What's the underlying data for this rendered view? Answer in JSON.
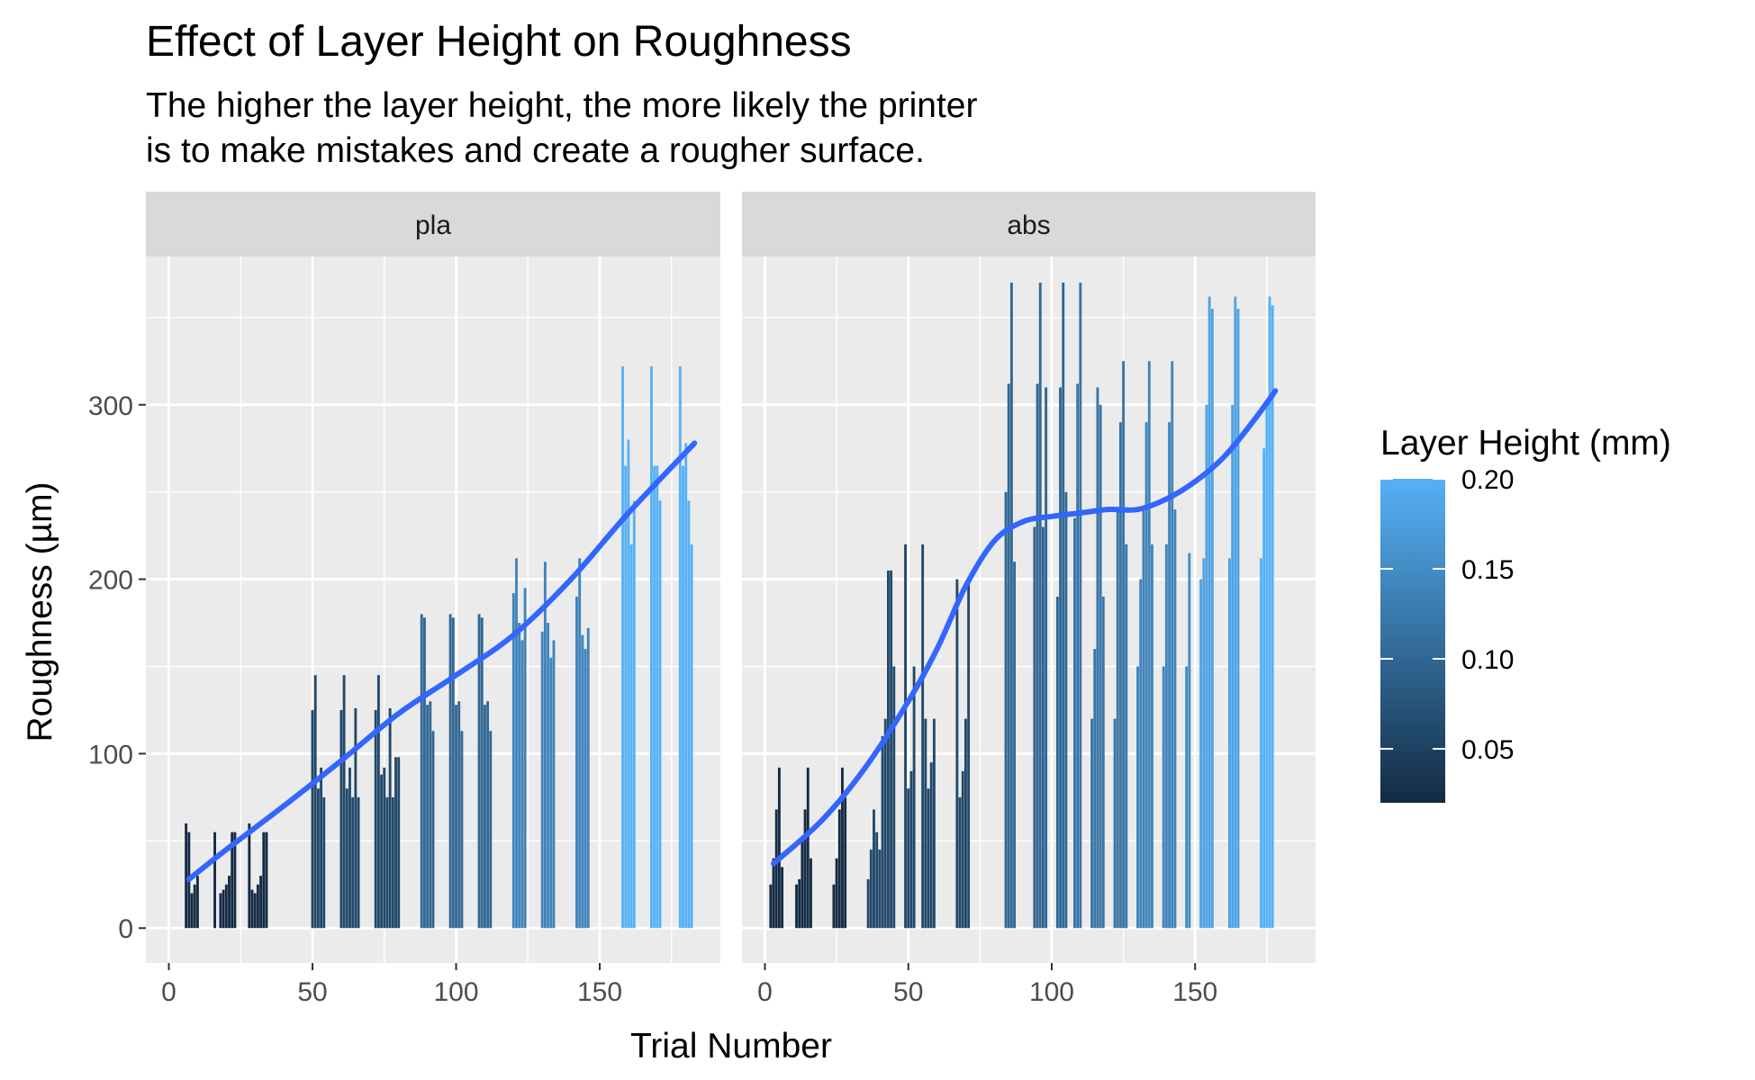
{
  "chart_data": {
    "type": "bar",
    "title": "Effect of Layer Height on Roughness",
    "subtitle_lines": [
      "The higher the layer height, the more likely the printer",
      "is to make mistakes and create a rougher surface."
    ],
    "xlabel": "Trial Number",
    "ylabel": "Roughness (µm)",
    "xlim": [
      -8,
      192
    ],
    "xticks": [
      0,
      50,
      100,
      150
    ],
    "ylim": [
      -20,
      385
    ],
    "yticks": [
      0,
      100,
      200,
      300
    ],
    "grid": true,
    "legend": {
      "title": "Layer Height (mm)",
      "position": "right",
      "range": [
        0.02,
        0.2
      ],
      "ticks": [
        0.05,
        0.1,
        0.15,
        0.2
      ],
      "color_low": "#132B43",
      "color_high": "#56B1F7"
    },
    "facets": [
      {
        "label": "pla",
        "bars": [
          {
            "x": 6,
            "y": 60,
            "h": 0.02
          },
          {
            "x": 7,
            "y": 55,
            "h": 0.02
          },
          {
            "x": 8,
            "y": 20,
            "h": 0.02
          },
          {
            "x": 9,
            "y": 25,
            "h": 0.02
          },
          {
            "x": 10,
            "y": 30,
            "h": 0.02
          },
          {
            "x": 16,
            "y": 55,
            "h": 0.02
          },
          {
            "x": 18,
            "y": 20,
            "h": 0.02
          },
          {
            "x": 19,
            "y": 22,
            "h": 0.02
          },
          {
            "x": 20,
            "y": 25,
            "h": 0.02
          },
          {
            "x": 21,
            "y": 30,
            "h": 0.02
          },
          {
            "x": 22,
            "y": 55,
            "h": 0.02
          },
          {
            "x": 23,
            "y": 55,
            "h": 0.02
          },
          {
            "x": 28,
            "y": 60,
            "h": 0.02
          },
          {
            "x": 29,
            "y": 22,
            "h": 0.02
          },
          {
            "x": 30,
            "y": 20,
            "h": 0.02
          },
          {
            "x": 31,
            "y": 25,
            "h": 0.02
          },
          {
            "x": 32,
            "y": 30,
            "h": 0.02
          },
          {
            "x": 33,
            "y": 55,
            "h": 0.02
          },
          {
            "x": 34,
            "y": 55,
            "h": 0.02
          },
          {
            "x": 50,
            "y": 125,
            "h": 0.06
          },
          {
            "x": 51,
            "y": 145,
            "h": 0.06
          },
          {
            "x": 52,
            "y": 80,
            "h": 0.06
          },
          {
            "x": 53,
            "y": 92,
            "h": 0.06
          },
          {
            "x": 54,
            "y": 75,
            "h": 0.06
          },
          {
            "x": 60,
            "y": 125,
            "h": 0.06
          },
          {
            "x": 61,
            "y": 145,
            "h": 0.06
          },
          {
            "x": 62,
            "y": 80,
            "h": 0.06
          },
          {
            "x": 63,
            "y": 92,
            "h": 0.06
          },
          {
            "x": 64,
            "y": 75,
            "h": 0.06
          },
          {
            "x": 65,
            "y": 126,
            "h": 0.06
          },
          {
            "x": 66,
            "y": 75,
            "h": 0.06
          },
          {
            "x": 72,
            "y": 125,
            "h": 0.06
          },
          {
            "x": 73,
            "y": 145,
            "h": 0.06
          },
          {
            "x": 74,
            "y": 88,
            "h": 0.06
          },
          {
            "x": 75,
            "y": 92,
            "h": 0.06
          },
          {
            "x": 76,
            "y": 75,
            "h": 0.06
          },
          {
            "x": 77,
            "y": 126,
            "h": 0.06
          },
          {
            "x": 78,
            "y": 75,
            "h": 0.06
          },
          {
            "x": 79,
            "y": 98,
            "h": 0.06
          },
          {
            "x": 80,
            "y": 98,
            "h": 0.06
          },
          {
            "x": 88,
            "y": 180,
            "h": 0.1
          },
          {
            "x": 89,
            "y": 178,
            "h": 0.1
          },
          {
            "x": 90,
            "y": 128,
            "h": 0.1
          },
          {
            "x": 91,
            "y": 130,
            "h": 0.1
          },
          {
            "x": 92,
            "y": 113,
            "h": 0.1
          },
          {
            "x": 98,
            "y": 180,
            "h": 0.1
          },
          {
            "x": 99,
            "y": 178,
            "h": 0.1
          },
          {
            "x": 100,
            "y": 128,
            "h": 0.1
          },
          {
            "x": 101,
            "y": 130,
            "h": 0.1
          },
          {
            "x": 102,
            "y": 113,
            "h": 0.1
          },
          {
            "x": 108,
            "y": 180,
            "h": 0.1
          },
          {
            "x": 109,
            "y": 178,
            "h": 0.1
          },
          {
            "x": 110,
            "y": 128,
            "h": 0.1
          },
          {
            "x": 111,
            "y": 130,
            "h": 0.1
          },
          {
            "x": 112,
            "y": 113,
            "h": 0.1
          },
          {
            "x": 120,
            "y": 192,
            "h": 0.14
          },
          {
            "x": 121,
            "y": 212,
            "h": 0.14
          },
          {
            "x": 122,
            "y": 175,
            "h": 0.14
          },
          {
            "x": 123,
            "y": 165,
            "h": 0.14
          },
          {
            "x": 124,
            "y": 195,
            "h": 0.14
          },
          {
            "x": 130,
            "y": 170,
            "h": 0.14
          },
          {
            "x": 131,
            "y": 210,
            "h": 0.14
          },
          {
            "x": 132,
            "y": 175,
            "h": 0.14
          },
          {
            "x": 133,
            "y": 155,
            "h": 0.14
          },
          {
            "x": 134,
            "y": 165,
            "h": 0.14
          },
          {
            "x": 142,
            "y": 190,
            "h": 0.14
          },
          {
            "x": 143,
            "y": 212,
            "h": 0.14
          },
          {
            "x": 144,
            "y": 168,
            "h": 0.14
          },
          {
            "x": 145,
            "y": 160,
            "h": 0.14
          },
          {
            "x": 146,
            "y": 172,
            "h": 0.14
          },
          {
            "x": 158,
            "y": 322,
            "h": 0.2
          },
          {
            "x": 159,
            "y": 265,
            "h": 0.2
          },
          {
            "x": 160,
            "y": 280,
            "h": 0.2
          },
          {
            "x": 161,
            "y": 220,
            "h": 0.2
          },
          {
            "x": 162,
            "y": 245,
            "h": 0.2
          },
          {
            "x": 168,
            "y": 322,
            "h": 0.2
          },
          {
            "x": 169,
            "y": 265,
            "h": 0.2
          },
          {
            "x": 170,
            "y": 265,
            "h": 0.2
          },
          {
            "x": 171,
            "y": 245,
            "h": 0.2
          },
          {
            "x": 178,
            "y": 322,
            "h": 0.2
          },
          {
            "x": 179,
            "y": 265,
            "h": 0.2
          },
          {
            "x": 180,
            "y": 278,
            "h": 0.2
          },
          {
            "x": 181,
            "y": 245,
            "h": 0.2
          },
          {
            "x": 182,
            "y": 220,
            "h": 0.2
          }
        ],
        "trend": [
          [
            7,
            28
          ],
          [
            20,
            45
          ],
          [
            40,
            70
          ],
          [
            60,
            96
          ],
          [
            80,
            123
          ],
          [
            100,
            145
          ],
          [
            120,
            168
          ],
          [
            140,
            200
          ],
          [
            160,
            238
          ],
          [
            183,
            278
          ]
        ]
      },
      {
        "label": "abs",
        "bars": [
          {
            "x": 2,
            "y": 25,
            "h": 0.02
          },
          {
            "x": 3,
            "y": 40,
            "h": 0.02
          },
          {
            "x": 4,
            "y": 68,
            "h": 0.02
          },
          {
            "x": 5,
            "y": 92,
            "h": 0.02
          },
          {
            "x": 6,
            "y": 35,
            "h": 0.02
          },
          {
            "x": 11,
            "y": 25,
            "h": 0.02
          },
          {
            "x": 12,
            "y": 28,
            "h": 0.02
          },
          {
            "x": 13,
            "y": 50,
            "h": 0.02
          },
          {
            "x": 14,
            "y": 68,
            "h": 0.02
          },
          {
            "x": 15,
            "y": 92,
            "h": 0.02
          },
          {
            "x": 16,
            "y": 40,
            "h": 0.02
          },
          {
            "x": 24,
            "y": 25,
            "h": 0.02
          },
          {
            "x": 25,
            "y": 40,
            "h": 0.02
          },
          {
            "x": 26,
            "y": 68,
            "h": 0.02
          },
          {
            "x": 27,
            "y": 92,
            "h": 0.02
          },
          {
            "x": 28,
            "y": 75,
            "h": 0.02
          },
          {
            "x": 36,
            "y": 28,
            "h": 0.06
          },
          {
            "x": 37,
            "y": 45,
            "h": 0.06
          },
          {
            "x": 38,
            "y": 68,
            "h": 0.06
          },
          {
            "x": 39,
            "y": 55,
            "h": 0.06
          },
          {
            "x": 40,
            "y": 45,
            "h": 0.06
          },
          {
            "x": 41,
            "y": 110,
            "h": 0.06
          },
          {
            "x": 42,
            "y": 120,
            "h": 0.06
          },
          {
            "x": 43,
            "y": 205,
            "h": 0.06
          },
          {
            "x": 44,
            "y": 205,
            "h": 0.06
          },
          {
            "x": 45,
            "y": 150,
            "h": 0.06
          },
          {
            "x": 49,
            "y": 220,
            "h": 0.06
          },
          {
            "x": 50,
            "y": 80,
            "h": 0.06
          },
          {
            "x": 51,
            "y": 90,
            "h": 0.06
          },
          {
            "x": 52,
            "y": 150,
            "h": 0.06
          },
          {
            "x": 55,
            "y": 220,
            "h": 0.06
          },
          {
            "x": 56,
            "y": 120,
            "h": 0.06
          },
          {
            "x": 57,
            "y": 80,
            "h": 0.06
          },
          {
            "x": 58,
            "y": 95,
            "h": 0.06
          },
          {
            "x": 59,
            "y": 120,
            "h": 0.06
          },
          {
            "x": 67,
            "y": 200,
            "h": 0.06
          },
          {
            "x": 68,
            "y": 75,
            "h": 0.06
          },
          {
            "x": 69,
            "y": 90,
            "h": 0.06
          },
          {
            "x": 70,
            "y": 120,
            "h": 0.06
          },
          {
            "x": 71,
            "y": 200,
            "h": 0.06
          },
          {
            "x": 84,
            "y": 250,
            "h": 0.1
          },
          {
            "x": 85,
            "y": 312,
            "h": 0.1
          },
          {
            "x": 86,
            "y": 370,
            "h": 0.1
          },
          {
            "x": 87,
            "y": 210,
            "h": 0.1
          },
          {
            "x": 94,
            "y": 230,
            "h": 0.1
          },
          {
            "x": 95,
            "y": 312,
            "h": 0.1
          },
          {
            "x": 96,
            "y": 370,
            "h": 0.1
          },
          {
            "x": 97,
            "y": 230,
            "h": 0.1
          },
          {
            "x": 98,
            "y": 310,
            "h": 0.1
          },
          {
            "x": 102,
            "y": 190,
            "h": 0.1
          },
          {
            "x": 103,
            "y": 310,
            "h": 0.1
          },
          {
            "x": 104,
            "y": 370,
            "h": 0.1
          },
          {
            "x": 105,
            "y": 250,
            "h": 0.1
          },
          {
            "x": 108,
            "y": 235,
            "h": 0.12
          },
          {
            "x": 109,
            "y": 312,
            "h": 0.12
          },
          {
            "x": 110,
            "y": 370,
            "h": 0.12
          },
          {
            "x": 114,
            "y": 120,
            "h": 0.12
          },
          {
            "x": 115,
            "y": 160,
            "h": 0.12
          },
          {
            "x": 116,
            "y": 310,
            "h": 0.12
          },
          {
            "x": 117,
            "y": 300,
            "h": 0.12
          },
          {
            "x": 118,
            "y": 190,
            "h": 0.12
          },
          {
            "x": 122,
            "y": 120,
            "h": 0.12
          },
          {
            "x": 123,
            "y": 240,
            "h": 0.12
          },
          {
            "x": 124,
            "y": 290,
            "h": 0.12
          },
          {
            "x": 125,
            "y": 325,
            "h": 0.12
          },
          {
            "x": 126,
            "y": 220,
            "h": 0.12
          },
          {
            "x": 130,
            "y": 150,
            "h": 0.14
          },
          {
            "x": 131,
            "y": 200,
            "h": 0.14
          },
          {
            "x": 132,
            "y": 240,
            "h": 0.14
          },
          {
            "x": 133,
            "y": 290,
            "h": 0.14
          },
          {
            "x": 134,
            "y": 325,
            "h": 0.14
          },
          {
            "x": 135,
            "y": 220,
            "h": 0.14
          },
          {
            "x": 139,
            "y": 150,
            "h": 0.14
          },
          {
            "x": 140,
            "y": 220,
            "h": 0.14
          },
          {
            "x": 141,
            "y": 290,
            "h": 0.14
          },
          {
            "x": 142,
            "y": 325,
            "h": 0.14
          },
          {
            "x": 143,
            "y": 240,
            "h": 0.14
          },
          {
            "x": 147,
            "y": 150,
            "h": 0.15
          },
          {
            "x": 148,
            "y": 215,
            "h": 0.15
          },
          {
            "x": 152,
            "y": 200,
            "h": 0.18
          },
          {
            "x": 153,
            "y": 212,
            "h": 0.18
          },
          {
            "x": 154,
            "y": 300,
            "h": 0.18
          },
          {
            "x": 155,
            "y": 362,
            "h": 0.18
          },
          {
            "x": 156,
            "y": 355,
            "h": 0.18
          },
          {
            "x": 162,
            "y": 212,
            "h": 0.18
          },
          {
            "x": 163,
            "y": 300,
            "h": 0.18
          },
          {
            "x": 164,
            "y": 362,
            "h": 0.18
          },
          {
            "x": 165,
            "y": 355,
            "h": 0.18
          },
          {
            "x": 173,
            "y": 212,
            "h": 0.2
          },
          {
            "x": 174,
            "y": 275,
            "h": 0.2
          },
          {
            "x": 175,
            "y": 300,
            "h": 0.2
          },
          {
            "x": 176,
            "y": 362,
            "h": 0.2
          },
          {
            "x": 177,
            "y": 357,
            "h": 0.2
          }
        ],
        "trend": [
          [
            3,
            37
          ],
          [
            20,
            62
          ],
          [
            35,
            92
          ],
          [
            50,
            130
          ],
          [
            60,
            160
          ],
          [
            70,
            196
          ],
          [
            80,
            222
          ],
          [
            90,
            233
          ],
          [
            100,
            236
          ],
          [
            110,
            238
          ],
          [
            120,
            240
          ],
          [
            130,
            240
          ],
          [
            140,
            246
          ],
          [
            150,
            256
          ],
          [
            160,
            270
          ],
          [
            170,
            290
          ],
          [
            178,
            308
          ]
        ]
      }
    ],
    "smooth_color": "#3366FF"
  }
}
